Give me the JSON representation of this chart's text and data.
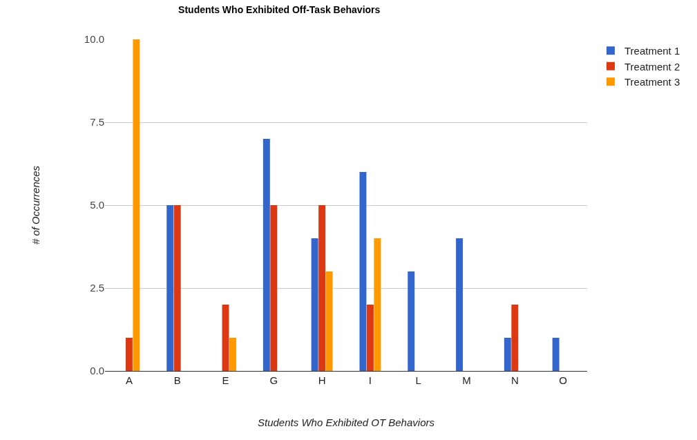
{
  "chart_data": {
    "type": "bar",
    "title": "Students Who Exhibited Off-Task Behaviors",
    "xlabel": "Students Who Exhibited OT Behaviors",
    "ylabel": "# of Occurrences",
    "categories": [
      "A",
      "B",
      "E",
      "G",
      "H",
      "I",
      "L",
      "M",
      "N",
      "O"
    ],
    "series": [
      {
        "name": "Treatment 1",
        "color": "#3366cc",
        "values": [
          0,
          5,
          0,
          7,
          4,
          6,
          3,
          4,
          1,
          1
        ]
      },
      {
        "name": "Treatment 2",
        "color": "#dc3912",
        "values": [
          1,
          5,
          2,
          5,
          5,
          2,
          0,
          0,
          2,
          0
        ]
      },
      {
        "name": "Treatment 3",
        "color": "#ff9900",
        "values": [
          10,
          0,
          1,
          0,
          3,
          4,
          0,
          0,
          0,
          0
        ]
      }
    ],
    "ylim": [
      0,
      10
    ],
    "yticks": [
      {
        "value": 0,
        "label": "0.0"
      },
      {
        "value": 2.5,
        "label": "2.5"
      },
      {
        "value": 5,
        "label": "5.0"
      },
      {
        "value": 7.5,
        "label": "7.5"
      },
      {
        "value": 10,
        "label": "10.0"
      }
    ],
    "grid": "y",
    "legend": "top right"
  }
}
